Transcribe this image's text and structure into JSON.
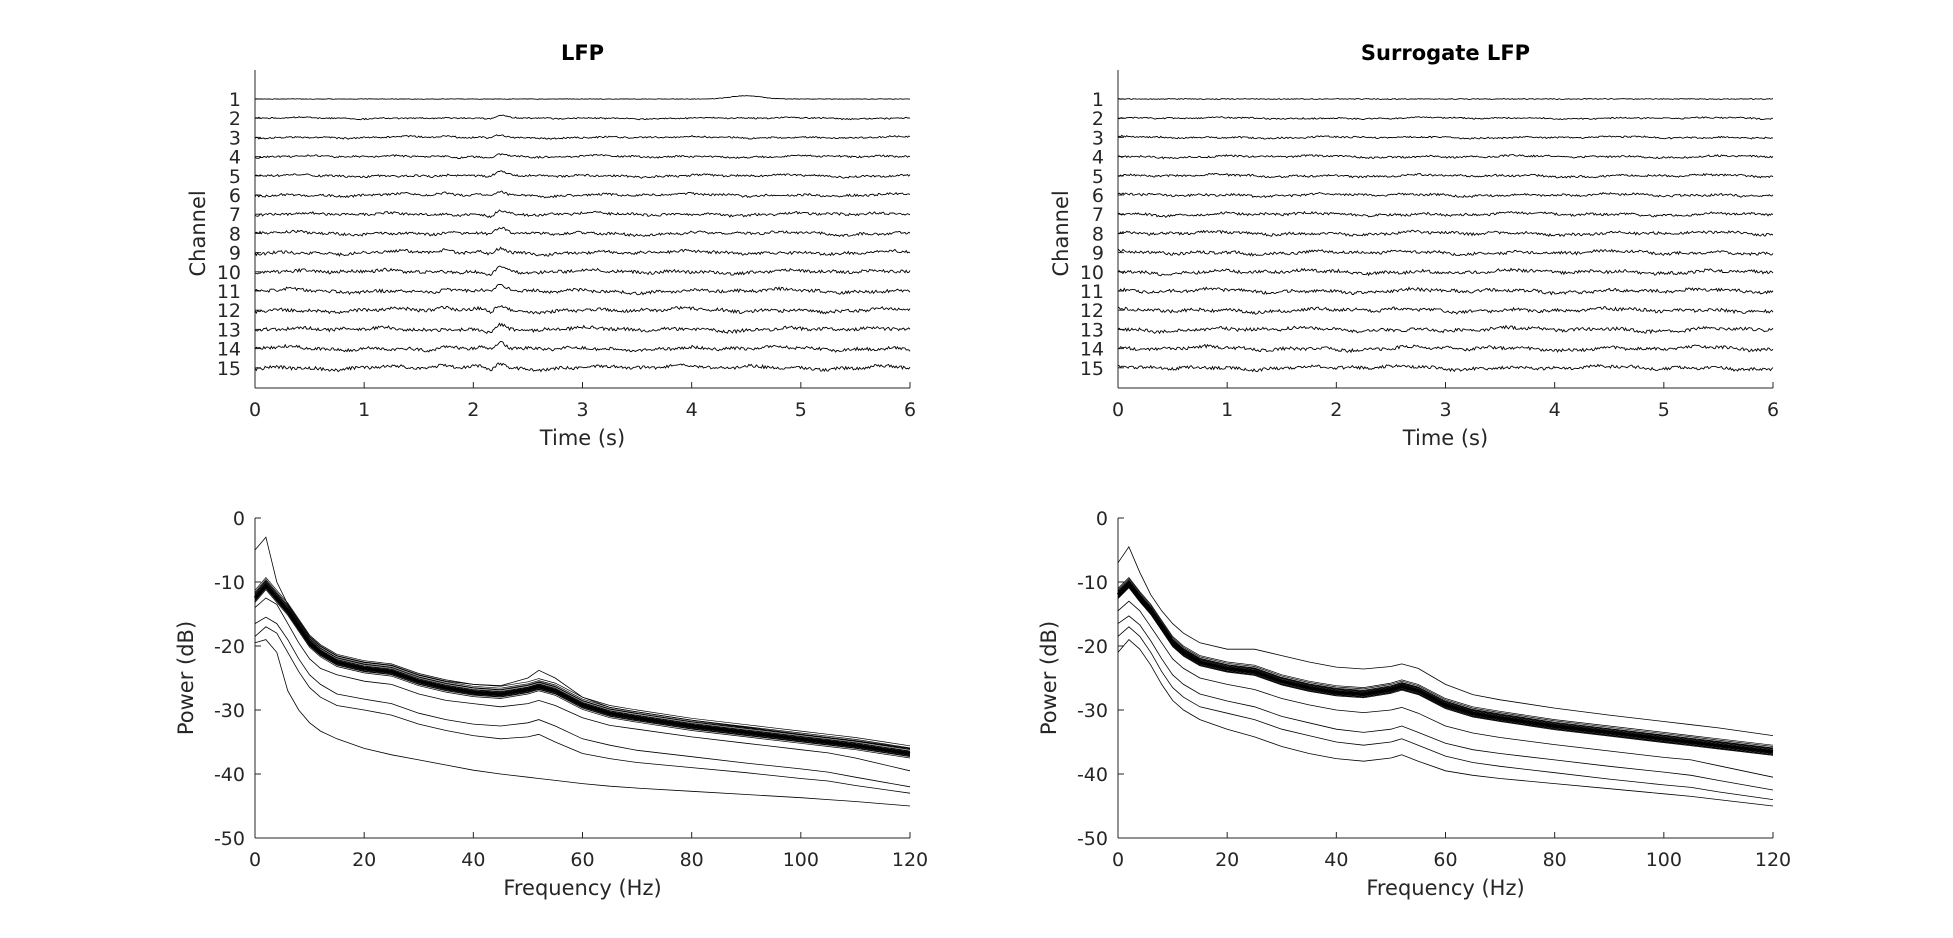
{
  "chart_data": [
    {
      "type": "line",
      "title": "LFP",
      "xlabel": "Time (s)",
      "ylabel": "Channel",
      "xlim": [
        0,
        6
      ],
      "xticks": [
        "0",
        "1",
        "2",
        "3",
        "4",
        "5",
        "6"
      ],
      "channels": [
        "1",
        "2",
        "3",
        "4",
        "5",
        "6",
        "7",
        "8",
        "9",
        "10",
        "11",
        "12",
        "13",
        "14",
        "15"
      ],
      "trace_color": "#000000",
      "grid": false
    },
    {
      "type": "line",
      "title": "Surrogate LFP",
      "xlabel": "Time (s)",
      "ylabel": "Channel",
      "xlim": [
        0,
        6
      ],
      "xticks": [
        "0",
        "1",
        "2",
        "3",
        "4",
        "5",
        "6"
      ],
      "channels": [
        "1",
        "2",
        "3",
        "4",
        "5",
        "6",
        "7",
        "8",
        "9",
        "10",
        "11",
        "12",
        "13",
        "14",
        "15"
      ],
      "trace_color": "#000000",
      "grid": false
    },
    {
      "type": "line",
      "title": "",
      "xlabel": "Frequency (Hz)",
      "ylabel": "Power (dB)",
      "xlim": [
        0,
        120
      ],
      "ylim": [
        -50,
        0
      ],
      "xticks": [
        "0",
        "20",
        "40",
        "60",
        "80",
        "100",
        "120"
      ],
      "yticks": [
        "0",
        "-10",
        "-20",
        "-30",
        "-40",
        "-50"
      ],
      "x": [
        0,
        2,
        4,
        6,
        8,
        10,
        12,
        15,
        20,
        25,
        30,
        35,
        40,
        45,
        50,
        52,
        55,
        60,
        65,
        70,
        80,
        90,
        100,
        105,
        110,
        120
      ],
      "mean_series": [
        -12.5,
        -10.5,
        -12.5,
        -14.5,
        -17,
        -19.5,
        -21,
        -22.5,
        -23.5,
        -24,
        -25.5,
        -26.5,
        -27.2,
        -27.5,
        -26.8,
        -26.3,
        -27,
        -29.2,
        -30.5,
        -31.2,
        -32.5,
        -33.5,
        -34.5,
        -35,
        -35.5,
        -36.8
      ],
      "channel_offsets": [
        0.3,
        -0.4,
        0.6,
        -0.2,
        0.9,
        -0.7,
        0.4,
        1.2,
        0.1,
        -0.5,
        0.7,
        0.0,
        -0.3
      ],
      "outlier_series": [
        {
          "values": [
            -5,
            -3,
            -10,
            -13.5,
            -16,
            -18.5,
            -20,
            -21.5,
            -22.5,
            -23,
            -24.5,
            -25.5,
            -26,
            -26.2,
            -25,
            -23.8,
            -25,
            -28,
            -29.6,
            -30.3,
            -31.6,
            -32.7,
            -33.8,
            -34.3,
            -34.8,
            -36
          ]
        },
        {
          "values": [
            -14,
            -12.5,
            -13.5,
            -16.5,
            -19.5,
            -22,
            -23.5,
            -24.5,
            -25.5,
            -26,
            -27.5,
            -28.5,
            -29,
            -29.5,
            -29,
            -28.5,
            -29.3,
            -31.2,
            -32.4,
            -33,
            -34.2,
            -35.2,
            -36.2,
            -36.7,
            -37.5,
            -39.5
          ]
        },
        {
          "values": [
            -16.5,
            -15.5,
            -16.5,
            -19,
            -22,
            -24.5,
            -26,
            -27.5,
            -28.3,
            -29,
            -30.5,
            -31.5,
            -32.2,
            -32.5,
            -32,
            -31.5,
            -32.5,
            -34.5,
            -35.5,
            -36.3,
            -37.3,
            -38.3,
            -39.2,
            -39.7,
            -40.5,
            -42
          ]
        },
        {
          "values": [
            -18.5,
            -17,
            -18,
            -21,
            -24,
            -26.5,
            -28,
            -29.3,
            -30,
            -30.8,
            -32.2,
            -33.2,
            -34,
            -34.5,
            -34.2,
            -33.8,
            -35,
            -36.8,
            -37.6,
            -38.2,
            -39,
            -39.8,
            -40.7,
            -41.1,
            -41.8,
            -43
          ]
        },
        {
          "values": [
            -19.5,
            -19,
            -21,
            -27,
            -30,
            -32,
            -33.3,
            -34.5,
            -36,
            -37,
            -37.8,
            -38.6,
            -39.4,
            -40,
            -40.5,
            -40.7,
            -41,
            -41.5,
            -41.9,
            -42.2,
            -42.7,
            -43.2,
            -43.7,
            -44,
            -44.3,
            -45
          ]
        }
      ],
      "line_color": "#000000",
      "grid": false
    },
    {
      "type": "line",
      "title": "",
      "xlabel": "Frequency (Hz)",
      "ylabel": "Power (dB)",
      "xlim": [
        0,
        120
      ],
      "ylim": [
        -50,
        0
      ],
      "xticks": [
        "0",
        "20",
        "40",
        "60",
        "80",
        "100",
        "120"
      ],
      "yticks": [
        "0",
        "-10",
        "-20",
        "-30",
        "-40",
        "-50"
      ],
      "x": [
        0,
        2,
        4,
        6,
        8,
        10,
        12,
        15,
        20,
        25,
        30,
        35,
        40,
        45,
        50,
        52,
        55,
        60,
        65,
        70,
        80,
        90,
        100,
        105,
        110,
        120
      ],
      "mean_series": [
        -12,
        -10.3,
        -12.5,
        -14.5,
        -17,
        -19.5,
        -21,
        -22.5,
        -23.5,
        -24,
        -25.5,
        -26.5,
        -27.2,
        -27.5,
        -26.8,
        -26.3,
        -27,
        -29.2,
        -30.5,
        -31.2,
        -32.5,
        -33.5,
        -34.5,
        -35,
        -35.5,
        -36.5
      ],
      "channel_offsets": [
        0.3,
        -0.4,
        0.5,
        -0.2,
        0.8,
        -0.6,
        0.4,
        1.0,
        0.1,
        -0.5,
        0.6,
        0.0,
        -0.3
      ],
      "outlier_series": [
        {
          "values": [
            -7,
            -4.5,
            -8.5,
            -12,
            -14.5,
            -16.5,
            -18,
            -19.5,
            -20.5,
            -20.5,
            -21.5,
            -22.5,
            -23.3,
            -23.6,
            -23.2,
            -22.8,
            -23.5,
            -26,
            -27.6,
            -28.4,
            -29.7,
            -30.8,
            -31.8,
            -32.3,
            -32.8,
            -34
          ]
        },
        {
          "values": [
            -14.5,
            -13,
            -14.5,
            -17,
            -19.5,
            -22,
            -23.5,
            -25,
            -26,
            -26.8,
            -28.2,
            -29.2,
            -30,
            -30.4,
            -30,
            -29.6,
            -30.5,
            -32.5,
            -33.6,
            -34.3,
            -35.4,
            -36.4,
            -37.4,
            -37.8,
            -38.7,
            -40.5
          ]
        },
        {
          "values": [
            -16.5,
            -15.3,
            -16.7,
            -19.2,
            -22,
            -24.5,
            -26,
            -27.5,
            -28.6,
            -29.5,
            -31,
            -32,
            -33,
            -33.5,
            -33,
            -32.5,
            -33.5,
            -35.2,
            -36.2,
            -36.8,
            -37.8,
            -38.8,
            -39.7,
            -40.2,
            -41,
            -42.5
          ]
        },
        {
          "values": [
            -18.5,
            -17,
            -18.5,
            -21,
            -24,
            -26.5,
            -28,
            -29.5,
            -30.5,
            -31.5,
            -33,
            -34,
            -35,
            -35.5,
            -35,
            -34.5,
            -35.5,
            -37.2,
            -38.2,
            -38.8,
            -39.8,
            -40.8,
            -41.7,
            -42.1,
            -42.8,
            -44
          ]
        },
        {
          "values": [
            -21,
            -19,
            -20.5,
            -23,
            -26,
            -28.5,
            -30,
            -31.5,
            -33,
            -34.2,
            -35.7,
            -36.8,
            -37.6,
            -38,
            -37.5,
            -37,
            -38,
            -39.5,
            -40.2,
            -40.7,
            -41.5,
            -42.3,
            -43.1,
            -43.5,
            -44,
            -45
          ]
        }
      ],
      "line_color": "#000000",
      "grid": false
    }
  ]
}
